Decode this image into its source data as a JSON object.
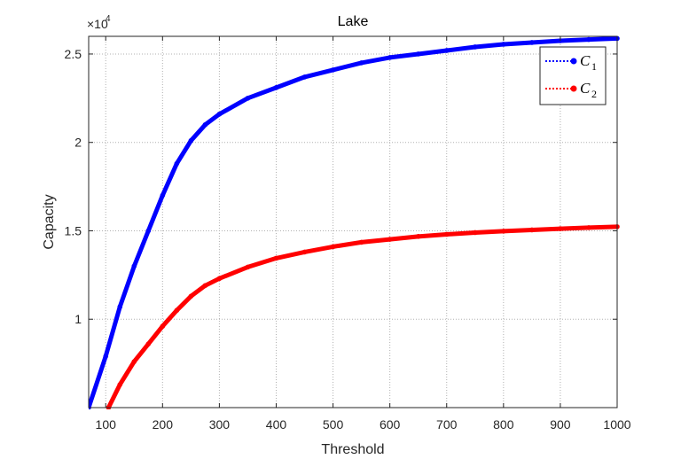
{
  "chart_data": {
    "type": "line",
    "title": "Lake",
    "xlabel": "Threshold",
    "ylabel": "Capacity",
    "exponent_label": "×10",
    "exponent_power": "4",
    "xlim": [
      70,
      1000
    ],
    "ylim": [
      5000,
      26000
    ],
    "x_ticks": [
      100,
      200,
      300,
      400,
      500,
      600,
      700,
      800,
      900,
      1000
    ],
    "x_tick_labels": [
      "100",
      "200",
      "300",
      "400",
      "500",
      "600",
      "700",
      "800",
      "900",
      "1000"
    ],
    "y_ticks": [
      10000,
      15000,
      20000,
      25000
    ],
    "y_tick_labels": [
      "1",
      "1.5",
      "2",
      "2.5"
    ],
    "grid": true,
    "legend_position": "top-right",
    "series": [
      {
        "name": "C",
        "subscript": "1",
        "color": "#0000ff",
        "x": [
          70,
          100,
          125,
          150,
          175,
          200,
          225,
          250,
          275,
          300,
          350,
          400,
          450,
          500,
          550,
          600,
          650,
          700,
          750,
          800,
          850,
          900,
          950,
          1000
        ],
        "y": [
          5000,
          7900,
          10700,
          13000,
          15000,
          17000,
          18800,
          20100,
          21000,
          21600,
          22500,
          23100,
          23700,
          24100,
          24500,
          24800,
          25000,
          25200,
          25400,
          25550,
          25650,
          25750,
          25820,
          25880
        ]
      },
      {
        "name": "C",
        "subscript": "2",
        "color": "#ff0000",
        "x": [
          105,
          125,
          150,
          175,
          200,
          225,
          250,
          275,
          300,
          350,
          400,
          450,
          500,
          550,
          600,
          650,
          700,
          750,
          800,
          850,
          900,
          950,
          1000
        ],
        "y": [
          5000,
          6300,
          7600,
          8600,
          9600,
          10500,
          11300,
          11900,
          12300,
          12950,
          13450,
          13800,
          14100,
          14350,
          14520,
          14680,
          14800,
          14900,
          14980,
          15050,
          15120,
          15180,
          15230
        ]
      }
    ]
  }
}
